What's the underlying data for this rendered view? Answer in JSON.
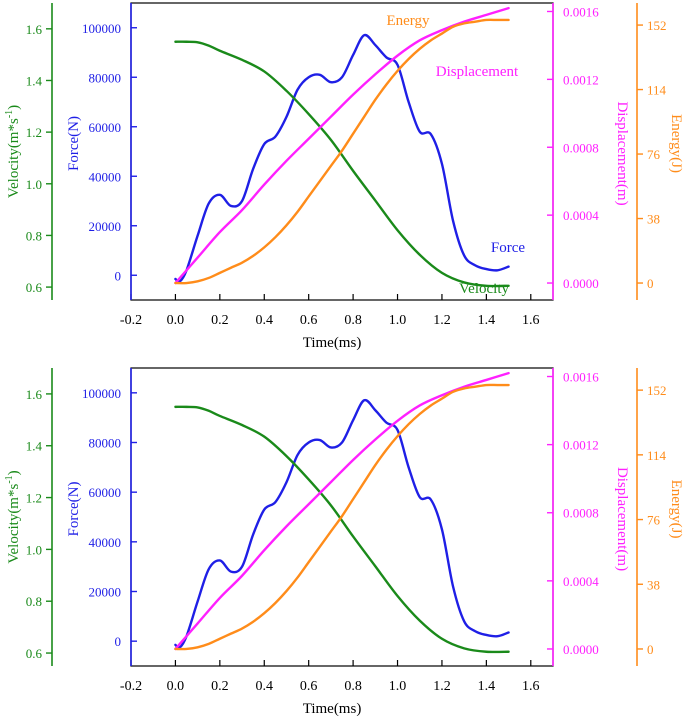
{
  "colors": {
    "force": "#1f1fe6",
    "velocity": "#1a8a1a",
    "displacement": "#ff20ff",
    "energy": "#ff8c1a",
    "axis": "#000000"
  },
  "chart_data": [
    {
      "type": "line",
      "panel": "top",
      "title": "",
      "xlabel": "Time(ms)",
      "xlim": [
        -0.2,
        1.7
      ],
      "xticks": [
        "-0.2",
        "0.0",
        "0.2",
        "0.4",
        "0.6",
        "0.8",
        "1.0",
        "1.2",
        "1.4",
        "1.6"
      ],
      "axes": {
        "velocity": {
          "label": "Velocity(m*s-1)",
          "label_main": "Velocity(m*s",
          "label_sup": "-1",
          "label_end": ")",
          "range": [
            0.55,
            1.7
          ],
          "ticks": [
            "0.6",
            "0.8",
            "1.0",
            "1.2",
            "1.4",
            "1.6"
          ]
        },
        "force": {
          "label": "Force(N)",
          "range": [
            -10000,
            110000
          ],
          "ticks": [
            "0",
            "20000",
            "40000",
            "60000",
            "80000",
            "100000"
          ]
        },
        "displacement": {
          "label": "Displacement(m)",
          "range": [
            -0.0001,
            0.00165
          ],
          "ticks": [
            "0.0000",
            "0.0004",
            "0.0008",
            "0.0012",
            "0.0016"
          ]
        },
        "energy": {
          "label": "Energy(J)",
          "range": [
            -10,
            165
          ],
          "ticks": [
            "0",
            "38",
            "76",
            "114",
            "152"
          ]
        }
      },
      "annotations": {
        "energy": "Energy",
        "displacement": "Displacement",
        "force": "Force",
        "velocity": "Velocity"
      },
      "series": [
        {
          "name": "Force",
          "axis": "force",
          "x": [
            0,
            0.02,
            0.05,
            0.1,
            0.15,
            0.2,
            0.25,
            0.3,
            0.35,
            0.4,
            0.45,
            0.5,
            0.55,
            0.6,
            0.65,
            0.7,
            0.75,
            0.8,
            0.85,
            0.9,
            0.95,
            1.0,
            1.05,
            1.1,
            1.15,
            1.2,
            1.25,
            1.3,
            1.35,
            1.4,
            1.45,
            1.5
          ],
          "values": [
            -1500,
            -2500,
            2000,
            16000,
            29000,
            32500,
            28000,
            30000,
            43000,
            53000,
            56000,
            64000,
            75000,
            80000,
            81000,
            78000,
            80000,
            89000,
            97000,
            93000,
            88000,
            85000,
            70000,
            58000,
            57000,
            45000,
            22000,
            8000,
            4000,
            2500,
            2000,
            3500
          ]
        },
        {
          "name": "Velocity",
          "axis": "velocity",
          "x": [
            0,
            0.05,
            0.1,
            0.15,
            0.2,
            0.3,
            0.4,
            0.5,
            0.6,
            0.7,
            0.8,
            0.9,
            1.0,
            1.1,
            1.2,
            1.3,
            1.4,
            1.5
          ],
          "values": [
            1.55,
            1.55,
            1.548,
            1.535,
            1.515,
            1.48,
            1.435,
            1.36,
            1.27,
            1.17,
            1.05,
            0.935,
            0.82,
            0.725,
            0.655,
            0.618,
            0.605,
            0.605
          ]
        },
        {
          "name": "Displacement",
          "axis": "displacement",
          "x": [
            0,
            0.1,
            0.2,
            0.3,
            0.4,
            0.5,
            0.6,
            0.7,
            0.8,
            0.9,
            1.0,
            1.1,
            1.2,
            1.3,
            1.4,
            1.5
          ],
          "values": [
            0.0,
            0.00015,
            0.0003,
            0.00043,
            0.00058,
            0.00072,
            0.00085,
            0.00098,
            0.00111,
            0.00123,
            0.00134,
            0.00143,
            0.00149,
            0.00154,
            0.00158,
            0.00162
          ]
        },
        {
          "name": "Energy",
          "axis": "energy",
          "x": [
            0,
            0.05,
            0.1,
            0.15,
            0.2,
            0.25,
            0.3,
            0.35,
            0.4,
            0.45,
            0.5,
            0.55,
            0.6,
            0.65,
            0.7,
            0.75,
            0.8,
            0.85,
            0.9,
            0.95,
            1.0,
            1.05,
            1.1,
            1.15,
            1.2,
            1.25,
            1.3,
            1.35,
            1.4,
            1.45,
            1.5
          ],
          "values": [
            0,
            0,
            1,
            3,
            6,
            9,
            12,
            16,
            21,
            27,
            34,
            42,
            51,
            60,
            69,
            78,
            88,
            98,
            108,
            117,
            125,
            132,
            138,
            143,
            147,
            151,
            153,
            154,
            155,
            155,
            155
          ]
        }
      ]
    },
    {
      "type": "line",
      "panel": "bottom",
      "title": "",
      "xlabel": "Time(ms)",
      "xlim": [
        -0.2,
        1.7
      ],
      "xticks": [
        "-0.2",
        "0.0",
        "0.2",
        "0.4",
        "0.6",
        "0.8",
        "1.0",
        "1.2",
        "1.4",
        "1.6"
      ],
      "axes": {
        "velocity": {
          "label": "Velocity(m*s-1)",
          "label_main": "Velocity(m*s",
          "label_sup": "-1",
          "label_end": ")",
          "range": [
            0.55,
            1.7
          ],
          "ticks": [
            "0.6",
            "0.8",
            "1.0",
            "1.2",
            "1.4",
            "1.6"
          ]
        },
        "force": {
          "label": "Force(N)",
          "range": [
            -10000,
            110000
          ],
          "ticks": [
            "0",
            "20000",
            "40000",
            "60000",
            "80000",
            "100000"
          ]
        },
        "displacement": {
          "label": "Displacement(m)",
          "range": [
            -0.0001,
            0.00165
          ],
          "ticks": [
            "0.0000",
            "0.0004",
            "0.0008",
            "0.0012",
            "0.0016"
          ]
        },
        "energy": {
          "label": "Energy(J)",
          "range": [
            -10,
            165
          ],
          "ticks": [
            "0",
            "38",
            "76",
            "114",
            "152"
          ]
        }
      },
      "annotations": {},
      "series": [
        {
          "name": "Force",
          "axis": "force",
          "x": [
            0,
            0.02,
            0.05,
            0.1,
            0.15,
            0.2,
            0.25,
            0.3,
            0.35,
            0.4,
            0.45,
            0.5,
            0.55,
            0.6,
            0.65,
            0.7,
            0.75,
            0.8,
            0.85,
            0.9,
            0.95,
            1.0,
            1.05,
            1.1,
            1.15,
            1.2,
            1.25,
            1.3,
            1.35,
            1.4,
            1.45,
            1.5
          ],
          "values": [
            -1500,
            -2500,
            2000,
            16000,
            29000,
            32500,
            28000,
            30000,
            43000,
            53000,
            56000,
            64000,
            75000,
            80000,
            81000,
            78000,
            80000,
            89000,
            97000,
            93000,
            88000,
            85000,
            70000,
            58000,
            57000,
            45000,
            22000,
            8000,
            4000,
            2500,
            2000,
            3500
          ]
        },
        {
          "name": "Velocity",
          "axis": "velocity",
          "x": [
            0,
            0.05,
            0.1,
            0.15,
            0.2,
            0.3,
            0.4,
            0.5,
            0.6,
            0.7,
            0.8,
            0.9,
            1.0,
            1.1,
            1.2,
            1.3,
            1.4,
            1.5
          ],
          "values": [
            1.55,
            1.55,
            1.548,
            1.535,
            1.515,
            1.48,
            1.435,
            1.36,
            1.27,
            1.17,
            1.05,
            0.935,
            0.82,
            0.725,
            0.655,
            0.618,
            0.605,
            0.605
          ]
        },
        {
          "name": "Displacement",
          "axis": "displacement",
          "x": [
            0,
            0.1,
            0.2,
            0.3,
            0.4,
            0.5,
            0.6,
            0.7,
            0.8,
            0.9,
            1.0,
            1.1,
            1.2,
            1.3,
            1.4,
            1.5
          ],
          "values": [
            0.0,
            0.00015,
            0.0003,
            0.00043,
            0.00058,
            0.00072,
            0.00085,
            0.00098,
            0.00111,
            0.00123,
            0.00134,
            0.00143,
            0.00149,
            0.00154,
            0.00158,
            0.00162
          ]
        },
        {
          "name": "Energy",
          "axis": "energy",
          "x": [
            0,
            0.05,
            0.1,
            0.15,
            0.2,
            0.25,
            0.3,
            0.35,
            0.4,
            0.45,
            0.5,
            0.55,
            0.6,
            0.65,
            0.7,
            0.75,
            0.8,
            0.85,
            0.9,
            0.95,
            1.0,
            1.05,
            1.1,
            1.15,
            1.2,
            1.25,
            1.3,
            1.35,
            1.4,
            1.45,
            1.5
          ],
          "values": [
            0,
            0,
            1,
            3,
            6,
            9,
            12,
            16,
            21,
            27,
            34,
            42,
            51,
            60,
            69,
            78,
            88,
            98,
            108,
            117,
            125,
            132,
            138,
            143,
            147,
            151,
            153,
            154,
            155,
            155,
            155
          ]
        }
      ]
    }
  ]
}
